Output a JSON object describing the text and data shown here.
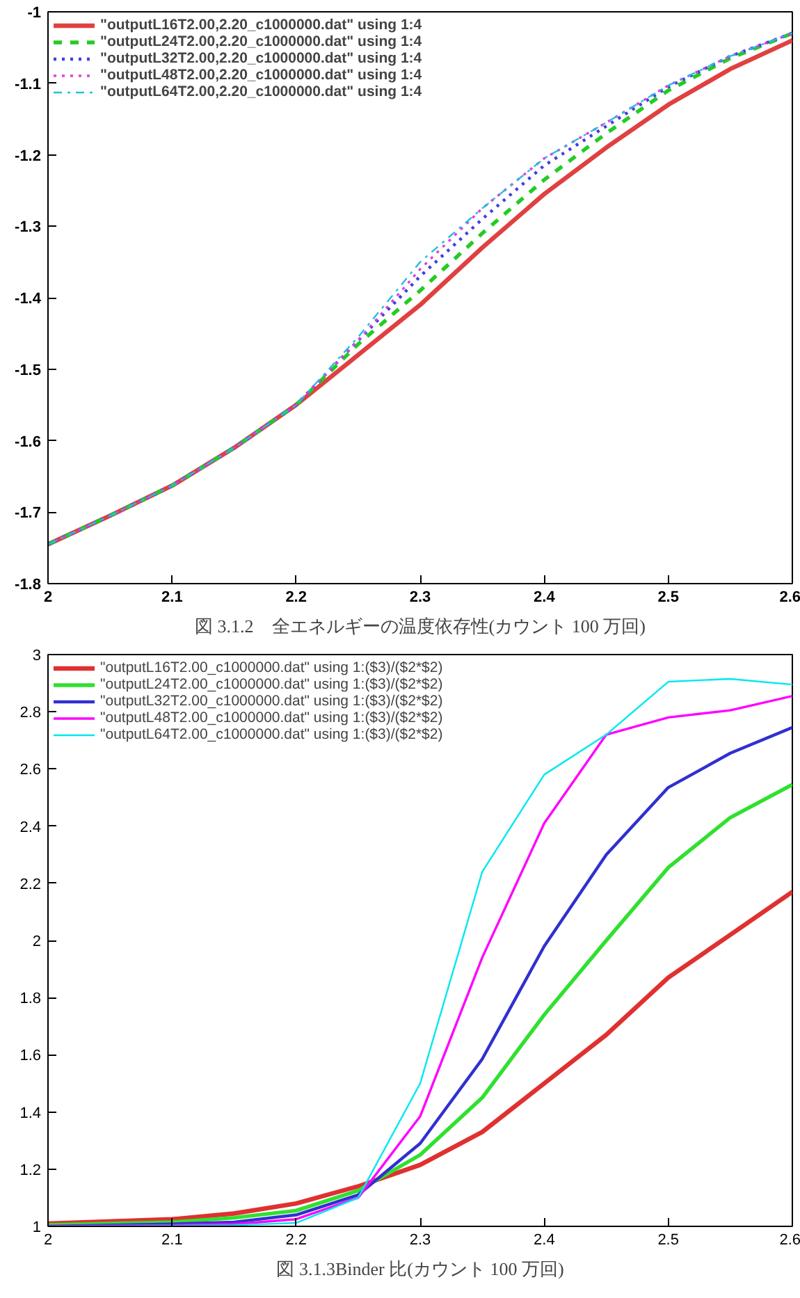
{
  "chart_data": [
    {
      "type": "line",
      "title": "図 3.1.2　全エネルギーの温度依存性(カウント 100 万回)",
      "x": [
        2,
        2.05,
        2.1,
        2.15,
        2.2,
        2.25,
        2.3,
        2.35,
        2.4,
        2.45,
        2.5,
        2.55,
        2.6
      ],
      "series": [
        {
          "name": "\"outputL16T2.00,2.20_c1000000.dat\" using 1:4",
          "color": "#e04040",
          "line_style": "solid",
          "values": [
            -1.745,
            -1.705,
            -1.663,
            -1.61,
            -1.55,
            -1.48,
            -1.41,
            -1.33,
            -1.255,
            -1.19,
            -1.13,
            -1.08,
            -1.04
          ]
        },
        {
          "name": "\"outputL24T2.00,2.20_c1000000.dat\" using 1:4",
          "color": "#22cc22",
          "line_style": "dashed",
          "values": [
            -1.745,
            -1.705,
            -1.663,
            -1.61,
            -1.55,
            -1.465,
            -1.39,
            -1.31,
            -1.235,
            -1.17,
            -1.11,
            -1.065,
            -1.03
          ]
        },
        {
          "name": "\"outputL32T2.00,2.20_c1000000.dat\" using 1:4",
          "color": "#4040e0",
          "line_style": "dotted",
          "values": [
            -1.745,
            -1.705,
            -1.663,
            -1.61,
            -1.55,
            -1.46,
            -1.37,
            -1.29,
            -1.215,
            -1.16,
            -1.105,
            -1.062,
            -1.03
          ]
        },
        {
          "name": "\"outputL48T2.00,2.20_c1000000.dat\" using 1:4",
          "color": "#e040e0",
          "line_style": "dotted",
          "values": [
            -1.745,
            -1.705,
            -1.663,
            -1.61,
            -1.55,
            -1.46,
            -1.36,
            -1.275,
            -1.205,
            -1.155,
            -1.103,
            -1.062,
            -1.03
          ]
        },
        {
          "name": "\"outputL64T2.00,2.20_c1000000.dat\" using 1:4",
          "color": "#20c0e0",
          "line_style": "dashdot",
          "values": [
            -1.745,
            -1.705,
            -1.663,
            -1.61,
            -1.55,
            -1.455,
            -1.35,
            -1.275,
            -1.205,
            -1.155,
            -1.103,
            -1.062,
            -1.03
          ]
        }
      ],
      "xlim": [
        2,
        2.6
      ],
      "xticks": [
        2,
        2.1,
        2.2,
        2.3,
        2.4,
        2.5,
        2.6
      ],
      "ylim": [
        -1.8,
        -1
      ],
      "yticks": [
        -1.8,
        -1.7,
        -1.6,
        -1.5,
        -1.4,
        -1.3,
        -1.2,
        -1.1,
        -1
      ],
      "grid": false,
      "legend": "top"
    },
    {
      "type": "line",
      "title": "図 3.1.3Binder 比(カウント 100 万回)",
      "x": [
        2,
        2.1,
        2.15,
        2.2,
        2.25,
        2.3,
        2.35,
        2.4,
        2.45,
        2.5,
        2.55,
        2.6
      ],
      "series": [
        {
          "name": "\"outputL16T2.00_c1000000.dat\" using 1:($3)/($2*$2)",
          "color": "#e03030",
          "values": [
            1.01,
            1.025,
            1.045,
            1.08,
            1.14,
            1.215,
            1.33,
            1.5,
            1.67,
            1.87,
            2.02,
            2.17
          ]
        },
        {
          "name": "\"outputL24T2.00_c1000000.dat\" using 1:($3)/($2*$2)",
          "color": "#30e030",
          "values": [
            1.005,
            1.015,
            1.03,
            1.055,
            1.125,
            1.25,
            1.45,
            1.74,
            2.0,
            2.255,
            2.43,
            2.545
          ]
        },
        {
          "name": "\"outputL32T2.00_c1000000.dat\" using 1:($3)/($2*$2)",
          "color": "#3030d0",
          "values": [
            1.0,
            1.008,
            1.015,
            1.04,
            1.11,
            1.29,
            1.585,
            1.98,
            2.3,
            2.535,
            2.655,
            2.745
          ]
        },
        {
          "name": "\"outputL48T2.00_c1000000.dat\" using 1:($3)/($2*$2)",
          "color": "#ff00ff",
          "values": [
            1.0,
            1.004,
            1.008,
            1.025,
            1.1,
            1.385,
            1.94,
            2.41,
            2.72,
            2.78,
            2.805,
            2.855
          ]
        },
        {
          "name": "\"outputL64T2.00_c1000000.dat\" using 1:($3)/($2*$2)",
          "color": "#00e8f0",
          "values": [
            1.0,
            1.002,
            1.004,
            1.012,
            1.1,
            1.5,
            2.24,
            2.58,
            2.72,
            2.905,
            2.915,
            2.895
          ]
        }
      ],
      "xlim": [
        2,
        2.6
      ],
      "xticks": [
        2,
        2.1,
        2.2,
        2.3,
        2.4,
        2.5,
        2.6
      ],
      "ylim": [
        1,
        3
      ],
      "yticks": [
        1,
        1.2,
        1.4,
        1.6,
        1.8,
        2,
        2.2,
        2.4,
        2.6,
        2.8,
        3
      ],
      "grid": false,
      "legend": "top"
    }
  ]
}
